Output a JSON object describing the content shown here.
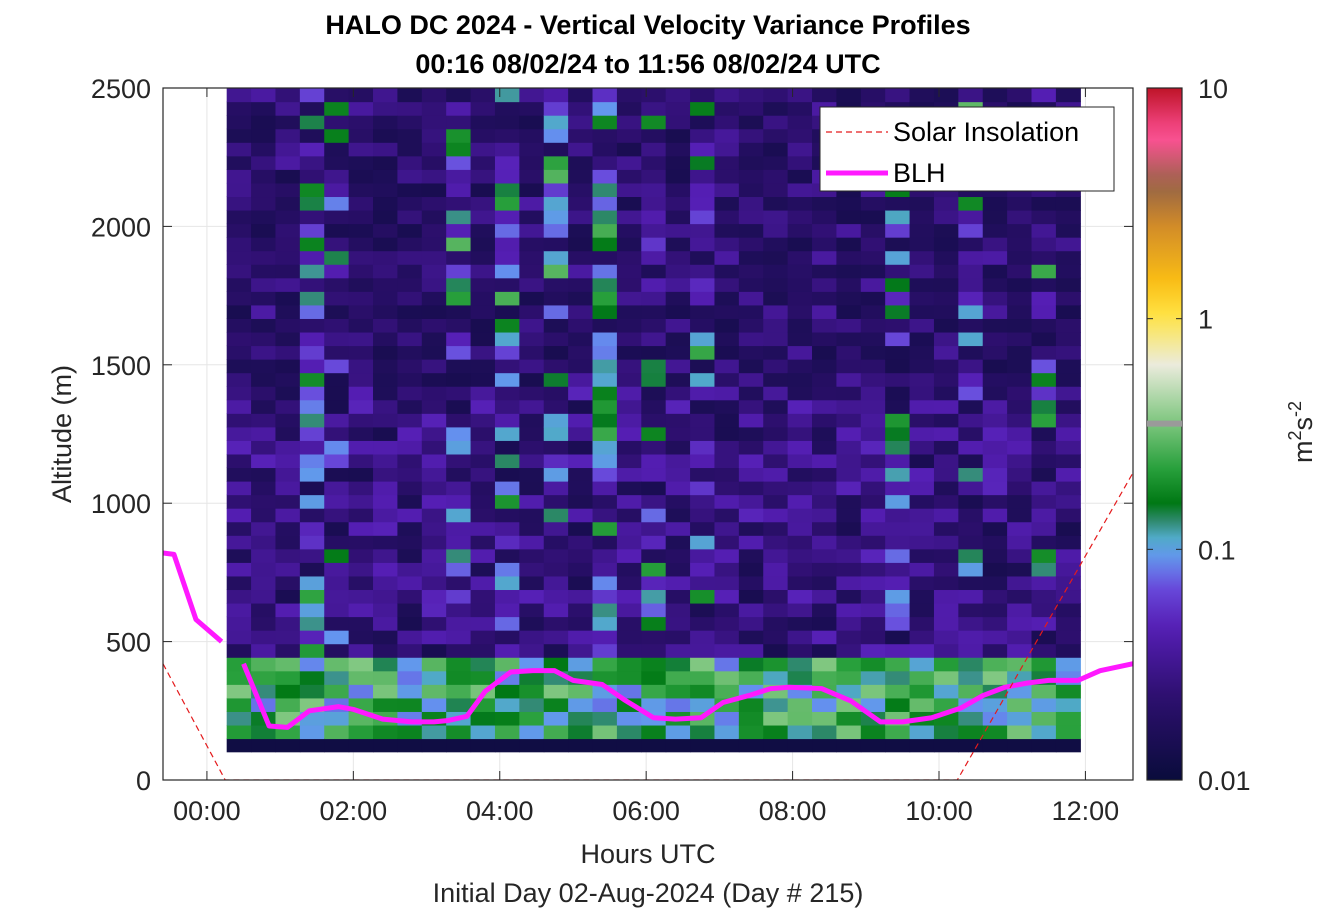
{
  "chart_data": {
    "type": "heatmap",
    "title": "HALO DC 2024 - Vertical Velocity Variance Profiles",
    "subtitle": "00:16 08/02/24 to 11:56 08/02/24  UTC",
    "xlabel": "Hours UTC",
    "xlabel2": "Initial Day 02-Aug-2024 (Day # 215)",
    "ylabel": "Altitude (m)",
    "colorbar_label": "m^2s^-2",
    "colorbar_label_parts": {
      "m": "m",
      "exp1": "2",
      "s": "s",
      "exp2": "-2"
    },
    "color_scale": "log",
    "clim": [
      0.01,
      10
    ],
    "colorbar_ticks": [
      {
        "value": 0.01,
        "label": "0.01"
      },
      {
        "value": 0.1,
        "label": "0.1"
      },
      {
        "value": 1,
        "label": "1"
      },
      {
        "value": 10,
        "label": "10"
      }
    ],
    "xlim": [
      -0.6,
      12.65
    ],
    "ylim": [
      0,
      2500
    ],
    "x_ticks": [
      {
        "value": 0,
        "label": "00:00"
      },
      {
        "value": 2,
        "label": "02:00"
      },
      {
        "value": 4,
        "label": "04:00"
      },
      {
        "value": 6,
        "label": "06:00"
      },
      {
        "value": 8,
        "label": "08:00"
      },
      {
        "value": 10,
        "label": "10:00"
      },
      {
        "value": 12,
        "label": "12:00"
      }
    ],
    "y_ticks": [
      {
        "value": 0,
        "label": "0"
      },
      {
        "value": 500,
        "label": "500"
      },
      {
        "value": 1000,
        "label": "1000"
      },
      {
        "value": 1500,
        "label": "1500"
      },
      {
        "value": 2000,
        "label": "2000"
      },
      {
        "value": 2500,
        "label": "2500"
      }
    ],
    "grid": true,
    "legend": {
      "placement": "top-right",
      "entries": [
        {
          "name": "Solar Insolation",
          "style": "dashed",
          "color": "#e41a1c"
        },
        {
          "name": "BLH",
          "style": "solid",
          "color": "#ff19ff"
        }
      ]
    },
    "heatmap": {
      "x_start": 0.27,
      "x_end": 11.93,
      "y_start": 100,
      "y_end": 2500,
      "n_cols": 35,
      "n_rows": 48,
      "band_1": {
        "altitude_max": 150,
        "variance": 0.01
      },
      "band_2": {
        "altitude_min": 150,
        "altitude_max": 450,
        "variance_range": [
          0.04,
          0.2
        ]
      },
      "band_3": {
        "altitude_min": 450,
        "variance_range": [
          0.01,
          0.08
        ]
      },
      "notes": "Vertical velocity variance, log colour scale; strongest (green, ~0.1 m2s-2) values near the surface and in columns near 01:00, 02:30 and 04:00 UTC"
    },
    "series": [
      {
        "name": "BLH",
        "color": "#ff19ff",
        "segments": [
          {
            "x": [
              -0.6,
              -0.45,
              -0.15,
              0.2
            ],
            "y": [
              820,
              815,
              580,
              500
            ]
          },
          {
            "x": [
              0.5,
              0.85,
              1.1,
              1.4,
              1.8,
              2.0,
              2.4,
              2.8,
              3.1,
              3.3,
              3.55,
              3.8,
              4.15,
              4.45,
              4.75,
              5.0,
              5.4,
              5.7,
              6.1,
              6.4,
              6.75,
              7.05,
              7.4,
              7.7,
              7.95,
              8.4,
              8.8,
              9.2,
              9.5,
              9.9,
              10.3,
              10.6,
              10.9,
              11.2,
              11.5,
              11.9,
              12.2,
              12.65
            ],
            "y": [
              420,
              195,
              190,
              250,
              265,
              255,
              220,
              210,
              210,
              215,
              230,
              320,
              390,
              395,
              395,
              360,
              345,
              290,
              225,
              220,
              225,
              280,
              305,
              330,
              335,
              330,
              285,
              210,
              210,
              225,
              260,
              305,
              335,
              350,
              360,
              360,
              395,
              420
            ]
          }
        ]
      },
      {
        "name": "Solar Insolation",
        "color": "#e41a1c",
        "style": "dashed",
        "x": [
          -0.6,
          0.25,
          10.25,
          12.65
        ],
        "y": [
          420,
          0,
          0,
          1110
        ]
      }
    ]
  }
}
